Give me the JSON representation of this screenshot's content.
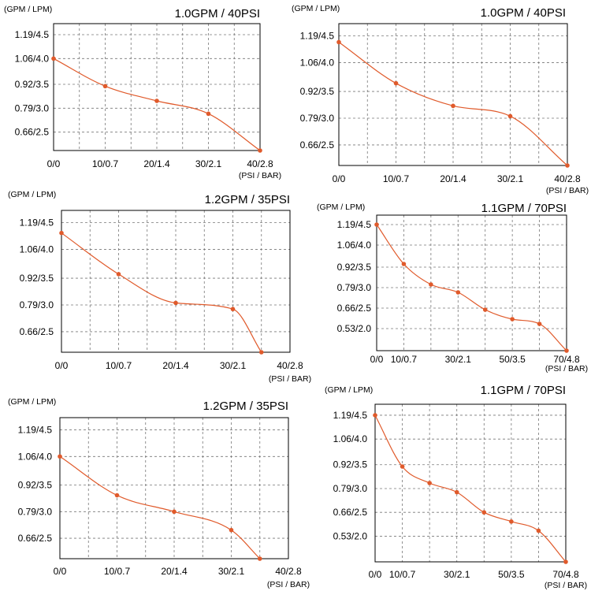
{
  "colors": {
    "curve": "#e05a2b",
    "frame": "#000000",
    "grid": "#777777"
  },
  "chart_data": [
    {
      "type": "line",
      "title": "1.0GPM / 40PSI",
      "unit_label": "(GPM / LPM)",
      "x_unit_label": "(PSI / BAR)",
      "x_tick_labels": [
        "0/0",
        "10/0.7",
        "20/1.4",
        "30/2.1",
        "40/2.8"
      ],
      "y_tick_labels": [
        "1.19/4.5",
        "1.06/4.0",
        "0.92/3.5",
        "0.79/3.0",
        "0.66/2.5"
      ],
      "x": [
        0,
        10,
        20,
        30,
        40
      ],
      "y": [
        1.06,
        0.91,
        0.83,
        0.76,
        0.56
      ],
      "xlim": [
        0,
        40
      ],
      "ylim": [
        0.56,
        1.25
      ]
    },
    {
      "type": "line",
      "title": "1.0GPM / 40PSI",
      "unit_label": "(GPM / LPM)",
      "x_unit_label": "(PSI / BAR)",
      "x_tick_labels": [
        "0/0",
        "10/0.7",
        "20/1.4",
        "30/2.1",
        "40/2.8"
      ],
      "y_tick_labels": [
        "1.19/4.5",
        "1.06/4.0",
        "0.92/3.5",
        "0.79/3.0",
        "0.66/2.5"
      ],
      "x": [
        0,
        10,
        20,
        30,
        40
      ],
      "y": [
        1.16,
        0.96,
        0.85,
        0.8,
        0.56
      ],
      "xlim": [
        0,
        40
      ],
      "ylim": [
        0.56,
        1.25
      ]
    },
    {
      "type": "line",
      "title": "1.2GPM / 35PSI",
      "unit_label": "(GPM / LPM)",
      "x_unit_label": "(PSI / BAR)",
      "x_tick_labels": [
        "0/0",
        "10/0.7",
        "20/1.4",
        "30/2.1",
        "40/2.8"
      ],
      "y_tick_labels": [
        "1.19/4.5",
        "1.06/4.0",
        "0.92/3.5",
        "0.79/3.0",
        "0.66/2.5"
      ],
      "x": [
        0,
        10,
        20,
        30,
        35
      ],
      "y": [
        1.14,
        0.94,
        0.8,
        0.77,
        0.56
      ],
      "xlim": [
        0,
        40
      ],
      "ylim": [
        0.56,
        1.25
      ]
    },
    {
      "type": "line",
      "title": "1.1GPM / 70PSI",
      "unit_label": "(GPM / LPM)",
      "x_unit_label": "(PSI / BAR)",
      "x_tick_labels": [
        "0/0",
        "10/0.7",
        "30/2.1",
        "50/3.5",
        "70/4.8"
      ],
      "x_tick_values": [
        0,
        10,
        30,
        50,
        70
      ],
      "y_tick_labels": [
        "1.19/4.5",
        "1.06/4.0",
        "0.92/3.5",
        "0.79/3.0",
        "0.66/2.5",
        "0.53/2.0"
      ],
      "x": [
        0,
        10,
        20,
        30,
        40,
        50,
        60,
        70
      ],
      "y": [
        1.19,
        0.94,
        0.81,
        0.76,
        0.65,
        0.59,
        0.56,
        0.39
      ],
      "xlim": [
        0,
        70
      ],
      "ylim": [
        0.39,
        1.25
      ]
    },
    {
      "type": "line",
      "title": "1.2GPM / 35PSI",
      "unit_label": "(GPM / LPM)",
      "x_unit_label": "(PSI / BAR)",
      "x_tick_labels": [
        "0/0",
        "10/0.7",
        "20/1.4",
        "30/2.1",
        "40/2.8"
      ],
      "y_tick_labels": [
        "1.19/4.5",
        "1.06/4.0",
        "0.92/3.5",
        "0.79/3.0",
        "0.66/2.5"
      ],
      "x": [
        0,
        10,
        20,
        30,
        35
      ],
      "y": [
        1.06,
        0.87,
        0.79,
        0.7,
        0.56
      ],
      "xlim": [
        0,
        40
      ],
      "ylim": [
        0.56,
        1.25
      ]
    },
    {
      "type": "line",
      "title": "1.1GPM / 70PSI",
      "unit_label": "(GPM / LPM)",
      "x_unit_label": "(PSI / BAR)",
      "x_tick_labels": [
        "0/0",
        "10/0.7",
        "30/2.1",
        "50/3.5",
        "70/4.8"
      ],
      "x_tick_values": [
        0,
        10,
        30,
        50,
        70
      ],
      "y_tick_labels": [
        "1.19/4.5",
        "1.06/4.0",
        "0.92/3.5",
        "0.79/3.0",
        "0.66/2.5",
        "0.53/2.0"
      ],
      "x": [
        0,
        10,
        20,
        30,
        40,
        50,
        60,
        70
      ],
      "y": [
        1.19,
        0.91,
        0.82,
        0.77,
        0.66,
        0.61,
        0.56,
        0.39
      ],
      "xlim": [
        0,
        70
      ],
      "ylim": [
        0.39,
        1.25
      ]
    }
  ]
}
